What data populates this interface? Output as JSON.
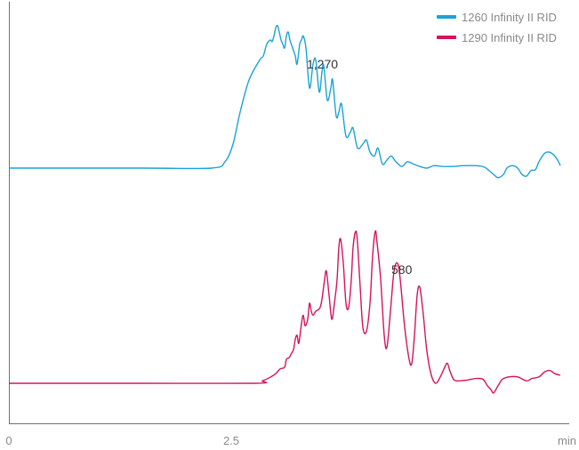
{
  "chart_data": {
    "type": "line",
    "title": "",
    "xlabel": "",
    "ylabel": "",
    "x_unit_label": "min",
    "xlim": [
      0,
      6.2
    ],
    "x_ticks": [
      {
        "value": 0,
        "label": "0"
      },
      {
        "value": 2.5,
        "label": "2.5"
      }
    ],
    "legend_position": "top-right",
    "grid": false,
    "series": [
      {
        "name": "1260 Infinity II RID",
        "color": "#1aa3d8",
        "peak_label": "1,270",
        "peak_label_x": 3.35,
        "points": [
          [
            0,
            0
          ],
          [
            1.5,
            0
          ],
          [
            2.28,
            0
          ],
          [
            2.43,
            8
          ],
          [
            2.52,
            30
          ],
          [
            2.6,
            70
          ],
          [
            2.7,
            110
          ],
          [
            2.82,
            135
          ],
          [
            2.86,
            140
          ],
          [
            2.9,
            155
          ],
          [
            2.94,
            160
          ],
          [
            2.96,
            158
          ],
          [
            2.98,
            165
          ],
          [
            3.0,
            175
          ],
          [
            3.02,
            178
          ],
          [
            3.04,
            170
          ],
          [
            3.06,
            160
          ],
          [
            3.08,
            155
          ],
          [
            3.1,
            150
          ],
          [
            3.12,
            165
          ],
          [
            3.14,
            170
          ],
          [
            3.16,
            160
          ],
          [
            3.19,
            150
          ],
          [
            3.22,
            140
          ],
          [
            3.24,
            130
          ],
          [
            3.27,
            155
          ],
          [
            3.29,
            160
          ],
          [
            3.31,
            165
          ],
          [
            3.34,
            150
          ],
          [
            3.38,
            100
          ],
          [
            3.42,
            130
          ],
          [
            3.45,
            135
          ],
          [
            3.49,
            95
          ],
          [
            3.52,
            120
          ],
          [
            3.54,
            128
          ],
          [
            3.58,
            85
          ],
          [
            3.62,
            100
          ],
          [
            3.64,
            110
          ],
          [
            3.68,
            65
          ],
          [
            3.71,
            70
          ],
          [
            3.74,
            80
          ],
          [
            3.79,
            40
          ],
          [
            3.84,
            45
          ],
          [
            3.87,
            50
          ],
          [
            3.92,
            25
          ],
          [
            3.98,
            30
          ],
          [
            4.02,
            35
          ],
          [
            4.06,
            20
          ],
          [
            4.11,
            15
          ],
          [
            4.15,
            25
          ],
          [
            4.2,
            5
          ],
          [
            4.25,
            10
          ],
          [
            4.3,
            15
          ],
          [
            4.35,
            8
          ],
          [
            4.42,
            2
          ],
          [
            4.48,
            8
          ],
          [
            4.55,
            5
          ],
          [
            4.62,
            2
          ],
          [
            4.7,
            0
          ],
          [
            4.78,
            3
          ],
          [
            4.88,
            2
          ],
          [
            5.0,
            2
          ],
          [
            5.1,
            3
          ],
          [
            5.25,
            3
          ],
          [
            5.35,
            1
          ],
          [
            5.45,
            -8
          ],
          [
            5.5,
            -12
          ],
          [
            5.56,
            -8
          ],
          [
            5.6,
            0
          ],
          [
            5.66,
            3
          ],
          [
            5.72,
            0
          ],
          [
            5.77,
            -8
          ],
          [
            5.82,
            -10
          ],
          [
            5.87,
            -3
          ],
          [
            5.92,
            -2
          ],
          [
            5.96,
            8
          ],
          [
            6.02,
            18
          ],
          [
            6.07,
            20
          ],
          [
            6.12,
            17
          ],
          [
            6.17,
            10
          ],
          [
            6.2,
            3
          ]
        ]
      },
      {
        "name": "1290 Infinity II RID",
        "color": "#d4145a",
        "peak_label": "580",
        "peak_label_x": 4.3,
        "points": [
          [
            0,
            0
          ],
          [
            1.5,
            0
          ],
          [
            2.78,
            0
          ],
          [
            2.85,
            3
          ],
          [
            2.93,
            7
          ],
          [
            3.0,
            12
          ],
          [
            3.05,
            18
          ],
          [
            3.1,
            20
          ],
          [
            3.12,
            30
          ],
          [
            3.15,
            32
          ],
          [
            3.18,
            38
          ],
          [
            3.2,
            42
          ],
          [
            3.22,
            55
          ],
          [
            3.24,
            60
          ],
          [
            3.26,
            50
          ],
          [
            3.29,
            75
          ],
          [
            3.31,
            85
          ],
          [
            3.33,
            72
          ],
          [
            3.36,
            80
          ],
          [
            3.38,
            100
          ],
          [
            3.4,
            90
          ],
          [
            3.42,
            85
          ],
          [
            3.45,
            90
          ],
          [
            3.48,
            92
          ],
          [
            3.5,
            95
          ],
          [
            3.52,
            105
          ],
          [
            3.55,
            130
          ],
          [
            3.57,
            140
          ],
          [
            3.6,
            110
          ],
          [
            3.63,
            80
          ],
          [
            3.66,
            100
          ],
          [
            3.69,
            130
          ],
          [
            3.71,
            170
          ],
          [
            3.73,
            180
          ],
          [
            3.76,
            150
          ],
          [
            3.79,
            100
          ],
          [
            3.82,
            95
          ],
          [
            3.85,
            130
          ],
          [
            3.87,
            170
          ],
          [
            3.9,
            190
          ],
          [
            3.92,
            175
          ],
          [
            3.95,
            120
          ],
          [
            3.98,
            70
          ],
          [
            4.02,
            65
          ],
          [
            4.06,
            100
          ],
          [
            4.09,
            160
          ],
          [
            4.12,
            190
          ],
          [
            4.14,
            175
          ],
          [
            4.18,
            130
          ],
          [
            4.22,
            60
          ],
          [
            4.25,
            45
          ],
          [
            4.29,
            90
          ],
          [
            4.33,
            140
          ],
          [
            4.37,
            150
          ],
          [
            4.4,
            130
          ],
          [
            4.45,
            70
          ],
          [
            4.5,
            30
          ],
          [
            4.53,
            25
          ],
          [
            4.56,
            60
          ],
          [
            4.59,
            110
          ],
          [
            4.62,
            120
          ],
          [
            4.66,
            85
          ],
          [
            4.7,
            40
          ],
          [
            4.75,
            10
          ],
          [
            4.8,
            0
          ],
          [
            4.85,
            8
          ],
          [
            4.9,
            20
          ],
          [
            4.93,
            25
          ],
          [
            4.96,
            15
          ],
          [
            5.0,
            5
          ],
          [
            5.05,
            3
          ],
          [
            5.15,
            4
          ],
          [
            5.25,
            6
          ],
          [
            5.33,
            5
          ],
          [
            5.38,
            -3
          ],
          [
            5.42,
            -8
          ],
          [
            5.45,
            -12
          ],
          [
            5.5,
            -3
          ],
          [
            5.55,
            5
          ],
          [
            5.62,
            8
          ],
          [
            5.72,
            8
          ],
          [
            5.82,
            3
          ],
          [
            5.88,
            6
          ],
          [
            5.96,
            8
          ],
          [
            6.02,
            14
          ],
          [
            6.08,
            16
          ],
          [
            6.14,
            12
          ],
          [
            6.2,
            10
          ]
        ]
      }
    ]
  }
}
